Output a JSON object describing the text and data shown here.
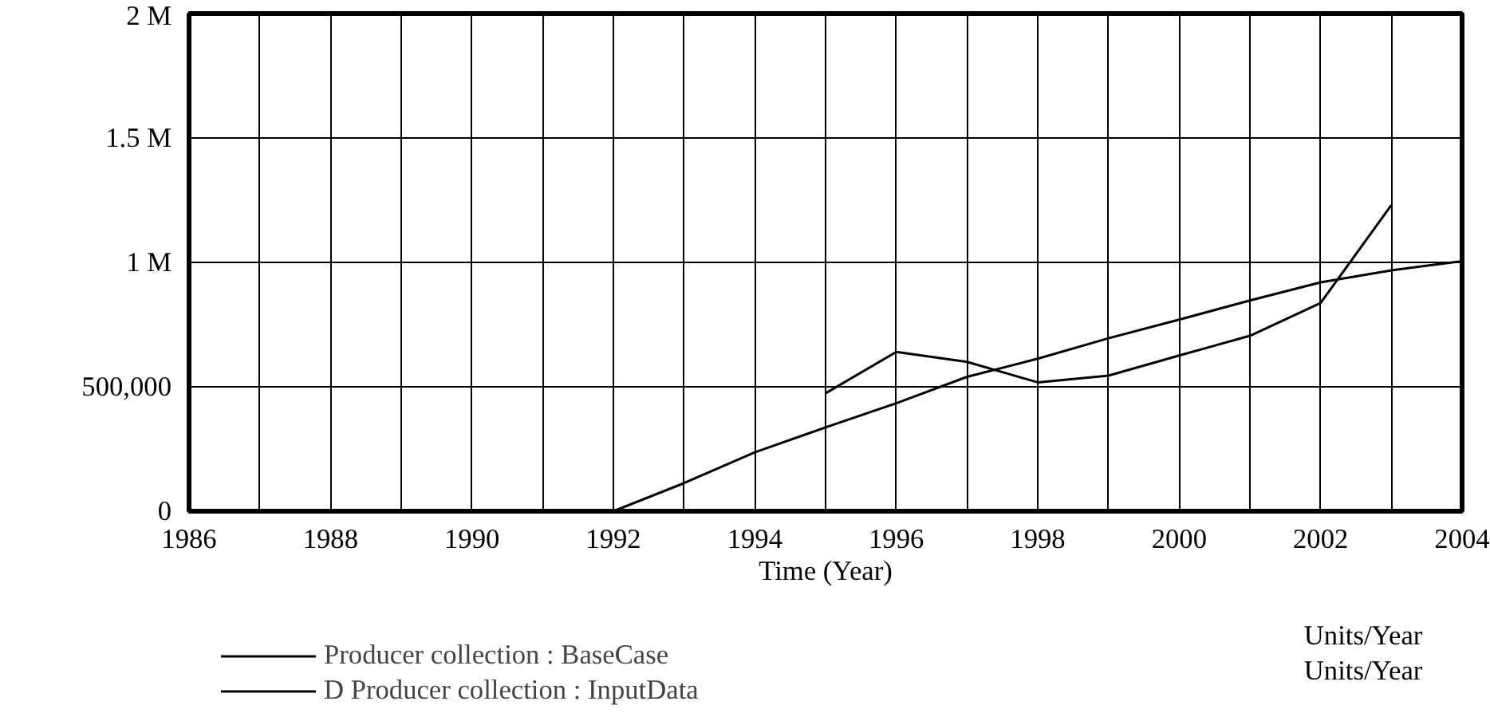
{
  "chart_data": {
    "type": "line",
    "xlabel": "Time (Year)",
    "x": [
      1986,
      1987,
      1988,
      1989,
      1990,
      1991,
      1992,
      1993,
      1994,
      1995,
      1996,
      1997,
      1998,
      1999,
      2000,
      2001,
      2002,
      2003,
      2004
    ],
    "series": [
      {
        "name": "Producer collection : BaseCase",
        "color": "#000000",
        "values": [
          0,
          0,
          0,
          0,
          0,
          0,
          0,
          113000,
          237000,
          337000,
          434000,
          540000,
          613000,
          695000,
          770000,
          847000,
          920000,
          968000,
          1005000
        ]
      },
      {
        "name": "D Producer collection : InputData",
        "color": "#000000",
        "values": [
          null,
          null,
          null,
          null,
          null,
          null,
          null,
          null,
          null,
          474000,
          640000,
          600000,
          518000,
          545000,
          626000,
          705000,
          837000,
          1230000,
          null
        ]
      }
    ],
    "annotations": [
      "Units/Year",
      "Units/Year"
    ],
    "xlim": [
      1986,
      2004
    ],
    "xticks": [
      1986,
      {
        "value": 1987,
        "label": null
      },
      1988,
      {
        "value": 1989,
        "label": null
      },
      1990,
      {
        "value": 1991,
        "label": null
      },
      1992,
      {
        "value": 1993,
        "label": null
      },
      1994,
      {
        "value": 1995,
        "label": null
      },
      1996,
      {
        "value": 1997,
        "label": null
      },
      1998,
      {
        "value": 1999,
        "label": null
      },
      2000,
      {
        "value": 2001,
        "label": null
      },
      2002,
      {
        "value": 2003,
        "label": null
      },
      2004
    ],
    "ylim": [
      0,
      2000000
    ],
    "yticks": [
      0,
      {
        "value": 500000,
        "label": "500,000"
      },
      {
        "value": 1000000,
        "label": "1 M"
      },
      {
        "value": 1500000,
        "label": "1.5 M"
      },
      {
        "value": 2000000,
        "label": "2 M"
      }
    ],
    "grid": true,
    "legend": "bottom",
    "line_style": "solid"
  }
}
